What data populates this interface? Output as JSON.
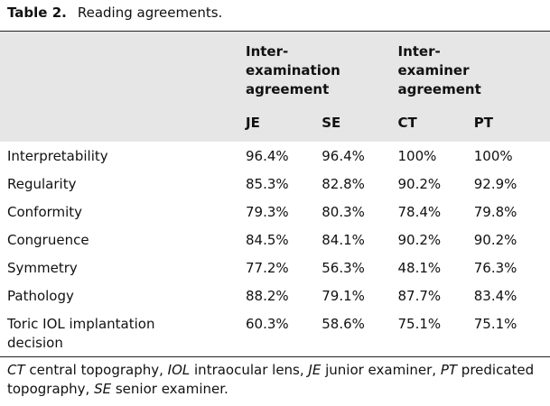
{
  "caption": {
    "label": "Table 2.",
    "title": "Reading agreements."
  },
  "table": {
    "group_headers": [
      "Inter-examination agreement",
      "Inter-examiner agreement"
    ],
    "columns": [
      "JE",
      "SE",
      "CT",
      "PT"
    ],
    "rows": [
      [
        "Interpretability",
        "96.4%",
        "96.4%",
        "100%",
        "100%"
      ],
      [
        "Regularity",
        "85.3%",
        "82.8%",
        "90.2%",
        "92.9%"
      ],
      [
        "Conformity",
        "79.3%",
        "80.3%",
        "78.4%",
        "79.8%"
      ],
      [
        "Congruence",
        "84.5%",
        "84.1%",
        "90.2%",
        "90.2%"
      ],
      [
        "Symmetry",
        "77.2%",
        "56.3%",
        "48.1%",
        "76.3%"
      ],
      [
        "Pathology",
        "88.2%",
        "79.1%",
        "87.7%",
        "83.4%"
      ],
      [
        "Toric IOL implantation decision",
        "60.3%",
        "58.6%",
        "75.1%",
        "75.1%"
      ]
    ]
  },
  "footnote": [
    {
      "abbr": "CT",
      "text": " central topography, "
    },
    {
      "abbr": "IOL",
      "text": " intraocular lens, "
    },
    {
      "abbr": "JE",
      "text": " junior examiner, "
    },
    {
      "abbr": "PT",
      "text": " predicated topography, "
    },
    {
      "abbr": "SE",
      "text": " senior examiner."
    }
  ]
}
